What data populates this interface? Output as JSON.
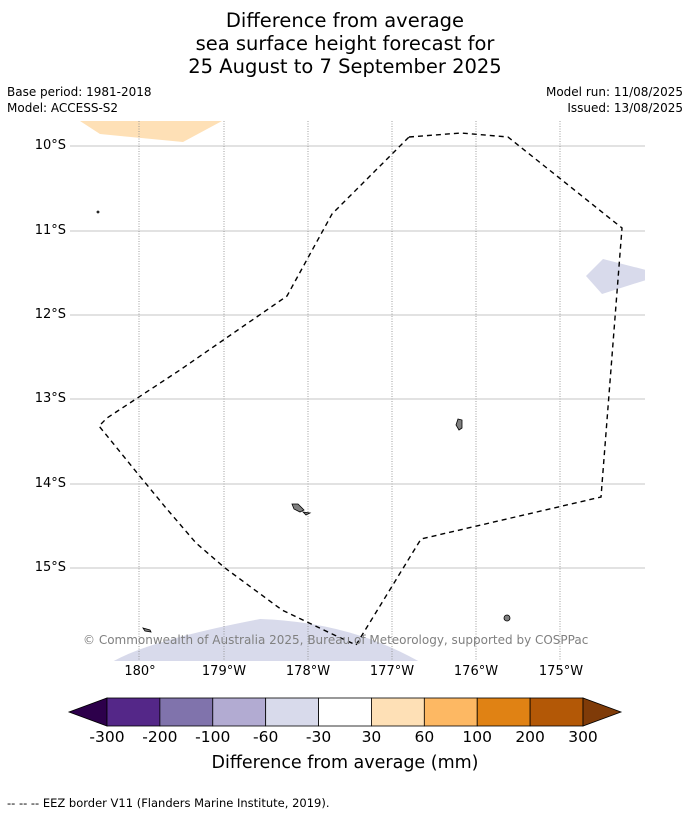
{
  "title": {
    "line1": "Difference from average",
    "line2": "sea surface height forecast for",
    "line3": "25 August to 7 September 2025"
  },
  "meta": {
    "base_period": "Base period: 1981-2018",
    "model": "Model: ACCESS-S2",
    "model_run": "Model run: 11/08/2025",
    "issued": "Issued: 13/08/2025"
  },
  "map": {
    "lat_labels": [
      "10°S",
      "11°S",
      "12°S",
      "13°S",
      "14°S",
      "15°S"
    ],
    "lon_labels": [
      "180°",
      "179°W",
      "178°W",
      "177°W",
      "176°W",
      "175°W"
    ],
    "copyright": "© Commonwealth of Australia 2025, Bureau of Meteorology, supported by COSPPac",
    "colors": {
      "anomaly_positive_light": "#fee0b6",
      "anomaly_negative_light": "#d8daeb",
      "land": "#808080",
      "eez_border": "#000000",
      "gridline": "#b0b0b0"
    }
  },
  "colorbar": {
    "ticks": [
      "-300",
      "-200",
      "-100",
      "-60",
      "-30",
      "30",
      "60",
      "100",
      "200",
      "300"
    ],
    "colors": [
      "#2d004b",
      "#542788",
      "#8073ac",
      "#b2abd2",
      "#d8daeb",
      "#ffffff",
      "#fee0b6",
      "#fdb863",
      "#e08214",
      "#b35806",
      "#7f3b08"
    ],
    "label": "Difference from average (mm)"
  },
  "footer": "-- -- -- EEZ border V11 (Flanders Marine Institute, 2019)."
}
